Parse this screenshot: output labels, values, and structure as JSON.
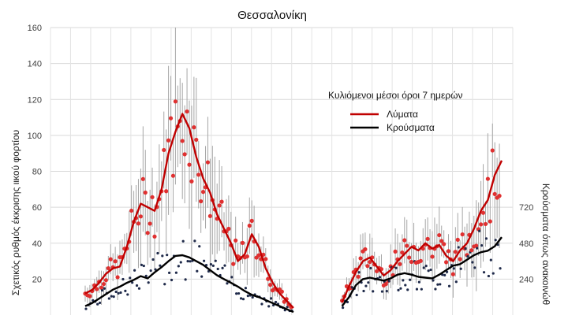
{
  "chart_data": {
    "type": "line",
    "title": "Θεσσαλονίκη",
    "ylabel": "Σχετικός ρυθμός έκκρισης ιικού φορτίου",
    "y2label": "Κρούσματα όπως ανακοινώθ",
    "ylim": [
      0,
      160
    ],
    "yticks": [
      20,
      40,
      60,
      80,
      100,
      120,
      140,
      160
    ],
    "y2ticks": [
      240,
      480,
      720
    ],
    "y2lim": [
      0,
      1920
    ],
    "grid": true,
    "legend": {
      "title": "Κυλιόμενοι μέσοι όροι 7 ημερών",
      "placement": "top-right",
      "entries": [
        {
          "label": "Λύματα",
          "color": "#c00000"
        },
        {
          "label": "Κρούσματα",
          "color": "#000000"
        }
      ]
    },
    "x": [
      0,
      3,
      6,
      9,
      12,
      15,
      18,
      21,
      24,
      27,
      30,
      33,
      36,
      39,
      42,
      45,
      48,
      51,
      54,
      57,
      60,
      63,
      66,
      69,
      72,
      75,
      78,
      81,
      84,
      87,
      90,
      93,
      96,
      99,
      102,
      105,
      108,
      111,
      114,
      117,
      120,
      123,
      126,
      129,
      132,
      135,
      138,
      141,
      144,
      147,
      150,
      153,
      156,
      159,
      162,
      165,
      168,
      171,
      174,
      177,
      180
    ],
    "series": [
      {
        "name": "Λύματα",
        "color": "#c00000",
        "values": [
          12,
          14,
          18,
          23,
          26,
          27,
          38,
          52,
          62,
          60,
          58,
          70,
          90,
          102,
          112,
          104,
          88,
          76,
          68,
          56,
          48,
          40,
          30,
          34,
          45,
          38,
          26,
          18,
          12,
          8,
          4,
          null,
          null,
          null,
          null,
          null,
          null,
          7,
          16,
          24,
          30,
          32,
          27,
          22,
          25,
          30,
          34,
          38,
          36,
          40,
          37,
          39,
          33,
          30,
          36,
          40,
          48,
          58,
          64,
          78,
          86
        ]
      },
      {
        "name": "Κρούσματα",
        "color": "#000000",
        "values_y2": [
          60,
          80,
          110,
          140,
          170,
          190,
          215,
          235,
          260,
          245,
          285,
          320,
          360,
          395,
          400,
          385,
          360,
          335,
          300,
          265,
          240,
          215,
          190,
          160,
          135,
          120,
          100,
          80,
          60,
          40,
          20,
          null,
          null,
          null,
          null,
          null,
          null,
          60,
          120,
          200,
          240,
          250,
          240,
          230,
          245,
          270,
          280,
          270,
          255,
          250,
          245,
          270,
          300,
          330,
          340,
          370,
          400,
          420,
          430,
          460,
          520
        ]
      }
    ]
  }
}
